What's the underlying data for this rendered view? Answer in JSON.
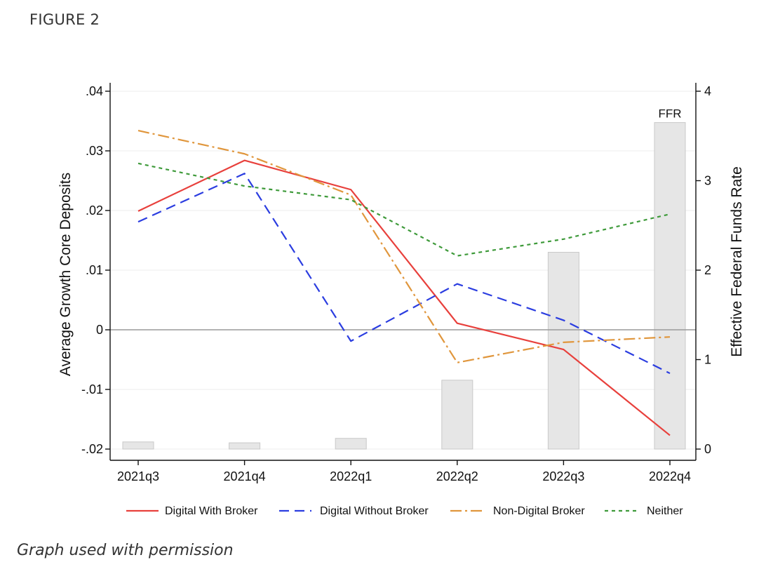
{
  "figure_label": "FIGURE 2",
  "caption": "Graph used with permission",
  "chart_data": {
    "type": "line",
    "categories": [
      "2021q3",
      "2021q4",
      "2022q1",
      "2022q2",
      "2022q3",
      "2022q4"
    ],
    "ylabel": "Average Growth Core Deposits",
    "y2label": "Effective Federal Funds Rate",
    "ylim": [
      -0.02,
      0.04
    ],
    "y2lim": [
      0,
      4
    ],
    "yticks": [
      {
        "value": 0.04,
        "label": ".04"
      },
      {
        "value": 0.03,
        "label": ".03"
      },
      {
        "value": 0.02,
        "label": ".02"
      },
      {
        "value": 0.01,
        "label": ".01"
      },
      {
        "value": 0,
        "label": "0"
      },
      {
        "value": -0.01,
        "label": "-.01"
      },
      {
        "value": -0.02,
        "label": "-.02"
      }
    ],
    "y2ticks": [
      {
        "value": 4,
        "label": "4"
      },
      {
        "value": 3,
        "label": "3"
      },
      {
        "value": 2,
        "label": "2"
      },
      {
        "value": 1,
        "label": "1"
      },
      {
        "value": 0,
        "label": "0"
      }
    ],
    "bars": {
      "label": "FFR",
      "values": [
        0.08,
        0.07,
        0.12,
        0.77,
        2.2,
        3.65
      ],
      "color": "#e6e6e6"
    },
    "series": [
      {
        "name": "Digital With Broker",
        "values": [
          0.0199,
          0.0284,
          0.0235,
          0.0011,
          -0.0033,
          -0.0177
        ],
        "color": "#e8403c",
        "dash": ""
      },
      {
        "name": "Digital Without Broker",
        "values": [
          0.0181,
          0.0262,
          -0.0019,
          0.0077,
          0.0016,
          -0.0073
        ],
        "color": "#2b3de0",
        "dash": "14,8"
      },
      {
        "name": "Non-Digital Broker",
        "values": [
          0.0334,
          0.0295,
          0.0226,
          -0.0055,
          -0.0021,
          -0.0012
        ],
        "color": "#e0963c",
        "dash": "16,5,3,5"
      },
      {
        "name": "Neither",
        "values": [
          0.0279,
          0.0241,
          0.0218,
          0.0124,
          0.0152,
          0.0194
        ],
        "color": "#3e9a3a",
        "dash": "5,5"
      }
    ],
    "legend_position": "bottom",
    "grid": true
  }
}
